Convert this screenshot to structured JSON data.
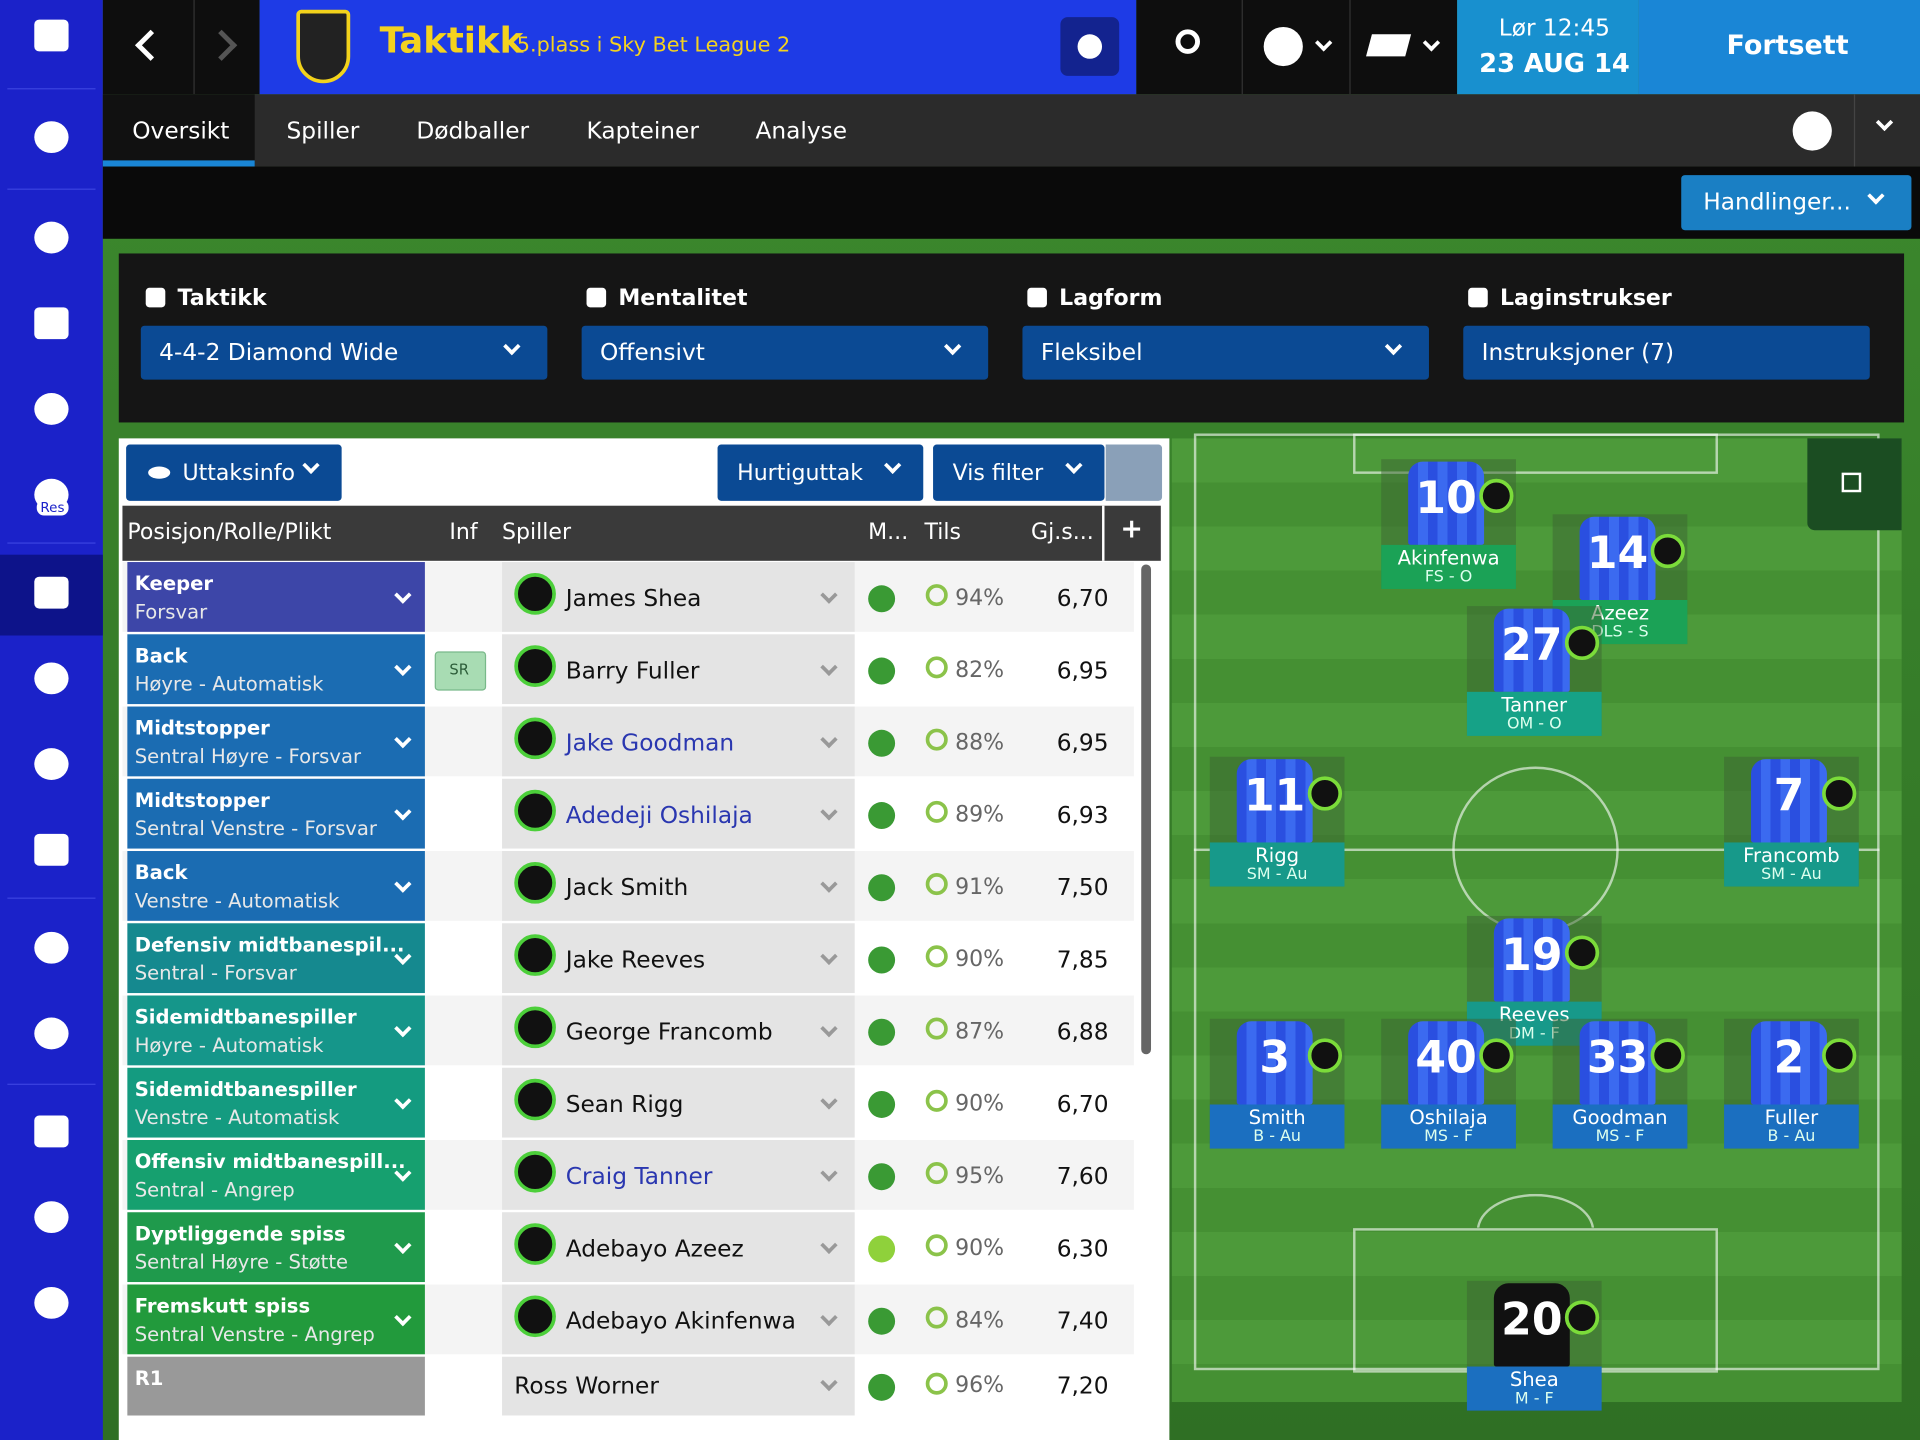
{
  "header": {
    "title": "Taktikk",
    "subtitle": "5.plass i Sky Bet League 2",
    "time": "Lør 12:45",
    "date": "23 AUG 14",
    "continue": "Fortsett"
  },
  "sidebar": {
    "reserves": "Res"
  },
  "tabs": [
    "Oversikt",
    "Spiller",
    "Dødballer",
    "Kapteiner",
    "Analyse"
  ],
  "actions": "Handlinger...",
  "settings": [
    {
      "label": "Taktikk",
      "value": "4-4-2 Diamond Wide"
    },
    {
      "label": "Mentalitet",
      "value": "Offensivt"
    },
    {
      "label": "Lagform",
      "value": "Fleksibel"
    },
    {
      "label": "Laginstrukser",
      "value": "Instruksjoner (7)"
    }
  ],
  "toolbar": {
    "selection_info": "Uttaksinfo",
    "quick_pick": "Hurtiguttak",
    "filter": "Vis filter"
  },
  "table": {
    "columns": [
      "Posisjon/Rolle/Plikt",
      "Inf",
      "Spiller",
      "M...",
      "Tils",
      "Gj.s...",
      "+"
    ],
    "rows": [
      {
        "position": "Keeper",
        "role": "Forsvar",
        "inf": null,
        "player": "James Shea",
        "condition": "94%",
        "rating": "6,70"
      },
      {
        "position": "Back",
        "role": "Høyre - Automatisk",
        "inf": "SR",
        "player": "Barry Fuller",
        "condition": "82%",
        "rating": "6,95"
      },
      {
        "position": "Midtstopper",
        "role": "Sentral Høyre - Forsvar",
        "inf": null,
        "player": "Jake Goodman",
        "condition": "88%",
        "rating": "6,95"
      },
      {
        "position": "Midtstopper",
        "role": "Sentral Venstre - Forsvar",
        "inf": null,
        "player": "Adedeji Oshilaja",
        "condition": "89%",
        "rating": "6,93"
      },
      {
        "position": "Back",
        "role": "Venstre - Automatisk",
        "inf": null,
        "player": "Jack Smith",
        "condition": "91%",
        "rating": "7,50"
      },
      {
        "position": "Defensiv midtbanespil...",
        "role": "Sentral - Forsvar",
        "inf": null,
        "player": "Jake Reeves",
        "condition": "90%",
        "rating": "7,85"
      },
      {
        "position": "Sidemidtbanespiller",
        "role": "Høyre - Automatisk",
        "inf": null,
        "player": "George Francomb",
        "condition": "87%",
        "rating": "6,88"
      },
      {
        "position": "Sidemidtbanespiller",
        "role": "Venstre - Automatisk",
        "inf": null,
        "player": "Sean Rigg",
        "condition": "90%",
        "rating": "6,70"
      },
      {
        "position": "Offensiv midtbanespill...",
        "role": "Sentral - Angrep",
        "inf": null,
        "player": "Craig Tanner",
        "condition": "95%",
        "rating": "7,60"
      },
      {
        "position": "Dyptliggende spiss",
        "role": "Sentral Høyre - Støtte",
        "inf": null,
        "player": "Adebayo Azeez",
        "condition": "90%",
        "rating": "6,30"
      },
      {
        "position": "Fremskutt spiss",
        "role": "Sentral Venstre - Angrep",
        "inf": null,
        "player": "Adebayo Akinfenwa",
        "condition": "84%",
        "rating": "7,40"
      },
      {
        "position": "R1",
        "role": null,
        "inf": null,
        "player": "Ross Worner",
        "condition": "96%",
        "rating": "7,20"
      }
    ]
  },
  "pitch": {
    "players": [
      {
        "number": "10",
        "name": "Akinfenwa",
        "role": "FS - O"
      },
      {
        "number": "14",
        "name": "Azeez",
        "role": "DLS - S"
      },
      {
        "number": "27",
        "name": "Tanner",
        "role": "OM - O"
      },
      {
        "number": "11",
        "name": "Rigg",
        "role": "SM - Au"
      },
      {
        "number": "7",
        "name": "Francomb",
        "role": "SM - Au"
      },
      {
        "number": "19",
        "name": "Reeves",
        "role": "DM - F"
      },
      {
        "number": "3",
        "name": "Smith",
        "role": "B - Au"
      },
      {
        "number": "40",
        "name": "Oshilaja",
        "role": "MS - F"
      },
      {
        "number": "33",
        "name": "Goodman",
        "role": "MS - F"
      },
      {
        "number": "2",
        "name": "Fuller",
        "role": "B - Au"
      },
      {
        "number": "20",
        "name": "Shea",
        "role": "M - F"
      }
    ]
  }
}
